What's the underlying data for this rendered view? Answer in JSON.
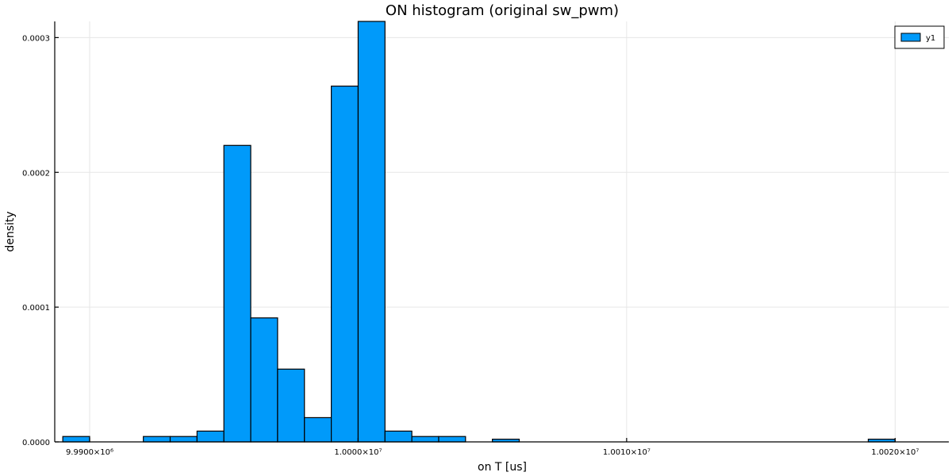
{
  "chart_data": {
    "type": "bar",
    "title": "ON histogram (original sw_pwm)",
    "xlabel": "on T [us]",
    "ylabel": "density",
    "xlim": [
      9988700,
      10022000
    ],
    "ylim": [
      0,
      0.000312
    ],
    "xticks": [
      {
        "value": 9990000,
        "label": "9.9900×10⁶"
      },
      {
        "value": 10000000,
        "label": "1.0000×10⁷"
      },
      {
        "value": 10010000,
        "label": "1.0010×10⁷"
      },
      {
        "value": 10020000,
        "label": "1.0020×10⁷"
      }
    ],
    "yticks": [
      {
        "value": 0,
        "label": "0.0000"
      },
      {
        "value": 0.0001,
        "label": "0.0001"
      },
      {
        "value": 0.0002,
        "label": "0.0002"
      },
      {
        "value": 0.0003,
        "label": "0.0003"
      }
    ],
    "grid": true,
    "legend_position": "top-right",
    "bin_width": 1000,
    "series": [
      {
        "name": "y1",
        "color": "#009AFA",
        "bins": [
          {
            "x0": 9989000,
            "value": 4e-06
          },
          {
            "x0": 9992000,
            "value": 4e-06
          },
          {
            "x0": 9993000,
            "value": 4e-06
          },
          {
            "x0": 9994000,
            "value": 8e-06
          },
          {
            "x0": 9995000,
            "value": 0.00022
          },
          {
            "x0": 9996000,
            "value": 9.2e-05
          },
          {
            "x0": 9997000,
            "value": 5.4e-05
          },
          {
            "x0": 9998000,
            "value": 1.8e-05
          },
          {
            "x0": 9999000,
            "value": 0.000264
          },
          {
            "x0": 10000000,
            "value": 0.000312
          },
          {
            "x0": 10001000,
            "value": 8e-06
          },
          {
            "x0": 10002000,
            "value": 4e-06
          },
          {
            "x0": 10003000,
            "value": 4e-06
          },
          {
            "x0": 10005000,
            "value": 2e-06
          },
          {
            "x0": 10019000,
            "value": 2e-06
          }
        ]
      }
    ]
  }
}
